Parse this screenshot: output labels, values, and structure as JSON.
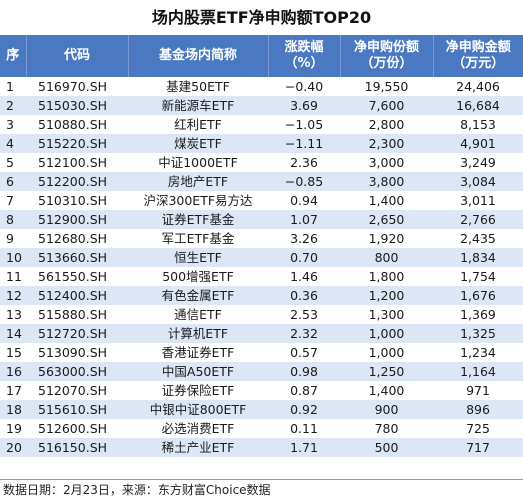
{
  "title": "场内股票ETF净申购额TOP20",
  "headers": {
    "rank": "序",
    "code": "代码",
    "name": "基金场内简称",
    "change_line1": "涨跌幅",
    "change_line2": "（%）",
    "shares_line1": "净申购份额",
    "shares_line2": "（万份）",
    "amount_line1": "净申购金额",
    "amount_line2": "（万元）"
  },
  "rows": [
    {
      "rank": "1",
      "code": "516970.SH",
      "name": "基建50ETF",
      "change": "−0.40",
      "shares": "19,550",
      "amount": "24,406"
    },
    {
      "rank": "2",
      "code": "515030.SH",
      "name": "新能源车ETF",
      "change": "3.69",
      "shares": "7,600",
      "amount": "16,684"
    },
    {
      "rank": "3",
      "code": "510880.SH",
      "name": "红利ETF",
      "change": "−1.05",
      "shares": "2,800",
      "amount": "8,153"
    },
    {
      "rank": "4",
      "code": "515220.SH",
      "name": "煤炭ETF",
      "change": "−1.11",
      "shares": "2,300",
      "amount": "4,901"
    },
    {
      "rank": "5",
      "code": "512100.SH",
      "name": "中证1000ETF",
      "change": "2.36",
      "shares": "3,000",
      "amount": "3,249"
    },
    {
      "rank": "6",
      "code": "512200.SH",
      "name": "房地产ETF",
      "change": "−0.85",
      "shares": "3,800",
      "amount": "3,084"
    },
    {
      "rank": "7",
      "code": "510310.SH",
      "name": "沪深300ETF易方达",
      "change": "0.94",
      "shares": "1,400",
      "amount": "3,011"
    },
    {
      "rank": "8",
      "code": "512900.SH",
      "name": "证券ETF基金",
      "change": "1.07",
      "shares": "2,650",
      "amount": "2,766"
    },
    {
      "rank": "9",
      "code": "512680.SH",
      "name": "军工ETF基金",
      "change": "3.26",
      "shares": "1,920",
      "amount": "2,435"
    },
    {
      "rank": "10",
      "code": "513660.SH",
      "name": "恒生ETF",
      "change": "0.70",
      "shares": "800",
      "amount": "1,834"
    },
    {
      "rank": "11",
      "code": "561550.SH",
      "name": "500增强ETF",
      "change": "1.46",
      "shares": "1,800",
      "amount": "1,754"
    },
    {
      "rank": "12",
      "code": "512400.SH",
      "name": "有色金属ETF",
      "change": "0.36",
      "shares": "1,200",
      "amount": "1,676"
    },
    {
      "rank": "13",
      "code": "515880.SH",
      "name": "通信ETF",
      "change": "2.53",
      "shares": "1,300",
      "amount": "1,369"
    },
    {
      "rank": "14",
      "code": "512720.SH",
      "name": "计算机ETF",
      "change": "2.32",
      "shares": "1,000",
      "amount": "1,325"
    },
    {
      "rank": "15",
      "code": "513090.SH",
      "name": "香港证券ETF",
      "change": "0.57",
      "shares": "1,000",
      "amount": "1,234"
    },
    {
      "rank": "16",
      "code": "563000.SH",
      "name": "中国A50ETF",
      "change": "0.98",
      "shares": "1,250",
      "amount": "1,164"
    },
    {
      "rank": "17",
      "code": "512070.SH",
      "name": "证券保险ETF",
      "change": "0.87",
      "shares": "1,400",
      "amount": "971"
    },
    {
      "rank": "18",
      "code": "515610.SH",
      "name": "中银中证800ETF",
      "change": "0.92",
      "shares": "900",
      "amount": "896"
    },
    {
      "rank": "19",
      "code": "512600.SH",
      "name": "必选消费ETF",
      "change": "0.11",
      "shares": "780",
      "amount": "725"
    },
    {
      "rank": "20",
      "code": "516150.SH",
      "name": "稀土产业ETF",
      "change": "1.71",
      "shares": "500",
      "amount": "717"
    }
  ],
  "footer": "数据日期：2月23日，来源：东方财富Choice数据",
  "colors": {
    "header_bg": "#4a79c2",
    "header_text": "#ffffff",
    "row_alt_bg": "#dce6f5",
    "row_bg": "#ffffff"
  }
}
